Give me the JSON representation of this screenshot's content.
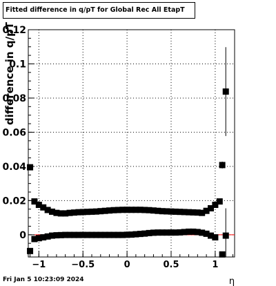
{
  "title": "Fitted difference in q/pT for Global Rec All EtapT",
  "footer_timestamp": "Fri Jan  5 10:23:09 2024",
  "chart_data": {
    "type": "scatter",
    "title": "Fitted difference in q/pT for Global Rec All EtapT",
    "xlabel": "η",
    "ylabel": "difference in q/pT",
    "xlim": [
      -1.12,
      1.22
    ],
    "ylim": [
      -0.013,
      0.12
    ],
    "grid": true,
    "x_ticks": [
      -1,
      -0.5,
      0,
      0.5,
      1
    ],
    "x_tick_labels": [
      "−1",
      "−0.5",
      "0",
      "0.5",
      "1"
    ],
    "x_minor_step": 0.1,
    "y_ticks": [
      0,
      0.02,
      0.04,
      0.06,
      0.08,
      0.1,
      0.12
    ],
    "y_tick_labels": [
      "0",
      "0.02",
      "0.04",
      "0.06",
      "0.08",
      "0.1",
      "0.12"
    ],
    "y_minor_step": 0.005,
    "fit_line": {
      "y": 0,
      "color": "#ff0000",
      "x_range": [
        -1.05,
        1.22
      ]
    },
    "marker_color": "#000000",
    "series": [
      {
        "points": [
          [
            -1.1,
            0.0395
          ],
          [
            -1.05,
            0.0195
          ],
          [
            -1.0,
            0.0175
          ],
          [
            -0.95,
            0.016
          ],
          [
            -0.9,
            0.0145
          ],
          [
            -0.85,
            0.0135
          ],
          [
            -0.8,
            0.0128
          ],
          [
            -0.75,
            0.0125
          ],
          [
            -0.7,
            0.0125
          ],
          [
            -0.65,
            0.0128
          ],
          [
            -0.6,
            0.013
          ],
          [
            -0.55,
            0.0132
          ],
          [
            -0.5,
            0.0133
          ],
          [
            -0.45,
            0.0134
          ],
          [
            -0.4,
            0.0135
          ],
          [
            -0.35,
            0.0136
          ],
          [
            -0.3,
            0.0138
          ],
          [
            -0.25,
            0.014
          ],
          [
            -0.2,
            0.0142
          ],
          [
            -0.15,
            0.0144
          ],
          [
            -0.1,
            0.0145
          ],
          [
            -0.05,
            0.0146
          ],
          [
            0.0,
            0.0146
          ],
          [
            0.05,
            0.0146
          ],
          [
            0.1,
            0.0146
          ],
          [
            0.15,
            0.0146
          ],
          [
            0.2,
            0.0145
          ],
          [
            0.25,
            0.0144
          ],
          [
            0.3,
            0.0142
          ],
          [
            0.35,
            0.014
          ],
          [
            0.4,
            0.0138
          ],
          [
            0.45,
            0.0137
          ],
          [
            0.5,
            0.0136
          ],
          [
            0.55,
            0.0135
          ],
          [
            0.6,
            0.0134
          ],
          [
            0.65,
            0.0133
          ],
          [
            0.7,
            0.0132
          ],
          [
            0.75,
            0.0131
          ],
          [
            0.8,
            0.013
          ],
          [
            0.85,
            0.0128
          ],
          [
            0.9,
            0.014
          ],
          [
            0.95,
            0.0155
          ],
          [
            1.0,
            0.0175
          ],
          [
            1.05,
            0.0195
          ],
          [
            1.08,
            0.0408
          ],
          [
            1.12,
            0.0838
          ]
        ],
        "errors": [
          [
            1.12,
            0.026
          ],
          [
            1.08,
            0.002
          ]
        ]
      },
      {
        "points": [
          [
            -1.1,
            -0.0095
          ],
          [
            -1.05,
            -0.0025
          ],
          [
            -1.0,
            -0.002
          ],
          [
            -0.95,
            -0.0015
          ],
          [
            -0.9,
            -0.001
          ],
          [
            -0.85,
            -0.0005
          ],
          [
            -0.8,
            -0.0003
          ],
          [
            -0.75,
            -0.0002
          ],
          [
            -0.7,
            -0.0001
          ],
          [
            -0.65,
            -0.0001
          ],
          [
            -0.6,
            -0.0001
          ],
          [
            -0.55,
            -0.0001
          ],
          [
            -0.5,
            -0.0001
          ],
          [
            -0.45,
            -0.0001
          ],
          [
            -0.4,
            -0.0001
          ],
          [
            -0.35,
            -0.0001
          ],
          [
            -0.3,
            -0.0001
          ],
          [
            -0.25,
            -0.0001
          ],
          [
            -0.2,
            -0.0001
          ],
          [
            -0.15,
            -0.0001
          ],
          [
            -0.1,
            -0.0001
          ],
          [
            -0.05,
            -0.0001
          ],
          [
            0.0,
            0.0
          ],
          [
            0.05,
            0.0001
          ],
          [
            0.1,
            0.0003
          ],
          [
            0.15,
            0.0005
          ],
          [
            0.2,
            0.0007
          ],
          [
            0.25,
            0.001
          ],
          [
            0.3,
            0.0012
          ],
          [
            0.35,
            0.0013
          ],
          [
            0.4,
            0.0013
          ],
          [
            0.45,
            0.0013
          ],
          [
            0.5,
            0.0013
          ],
          [
            0.55,
            0.0013
          ],
          [
            0.6,
            0.0014
          ],
          [
            0.65,
            0.0016
          ],
          [
            0.7,
            0.0018
          ],
          [
            0.75,
            0.0018
          ],
          [
            0.8,
            0.0016
          ],
          [
            0.85,
            0.0012
          ],
          [
            0.9,
            0.0006
          ],
          [
            0.95,
            -0.0005
          ],
          [
            1.0,
            -0.0015
          ],
          [
            1.08,
            -0.0115
          ],
          [
            1.12,
            -0.0005
          ]
        ],
        "errors": [
          [
            1.12,
            0.016
          ]
        ]
      }
    ]
  }
}
